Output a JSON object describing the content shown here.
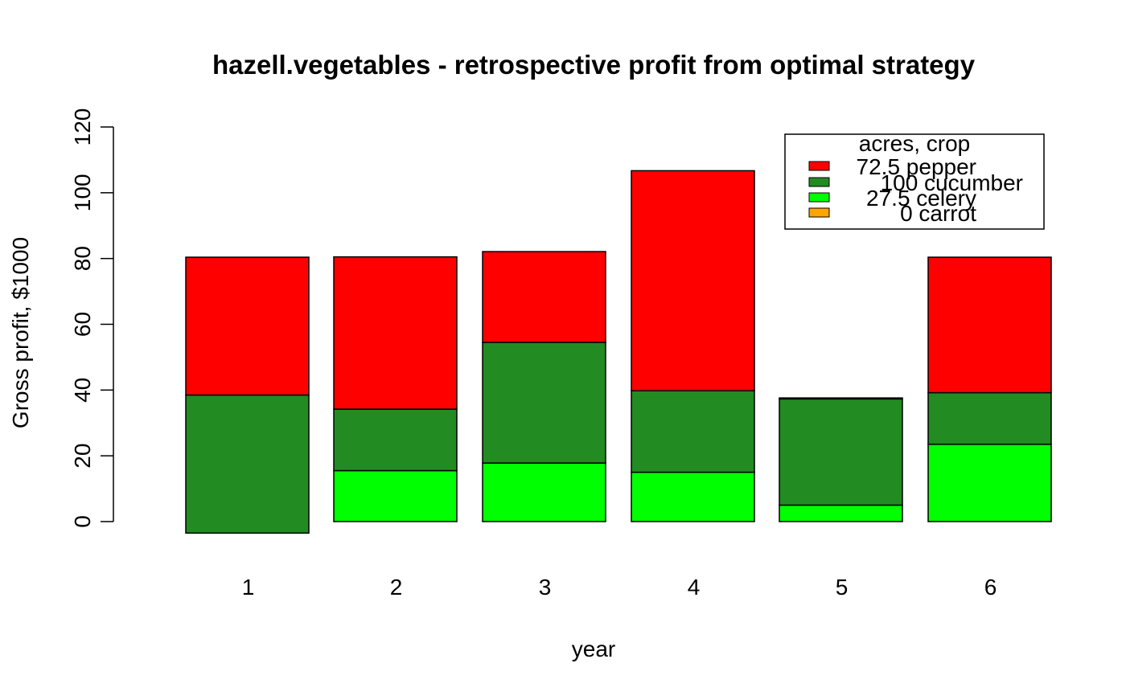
{
  "chart_data": {
    "type": "bar",
    "stacked": true,
    "title": "hazell.vegetables - retrospective profit from optimal strategy",
    "xlabel": "year",
    "ylabel": "Gross profit, $1000",
    "categories": [
      "1",
      "2",
      "3",
      "4",
      "5",
      "6"
    ],
    "ylim": [
      -3.5,
      120
    ],
    "yticks": [
      0,
      20,
      40,
      60,
      80,
      100,
      120
    ],
    "grid": false,
    "series": [
      {
        "name": "0 carrot",
        "color": "#FFA500",
        "values": [
          0,
          0,
          0,
          0,
          0,
          0
        ]
      },
      {
        "name": "27.5 celery",
        "color": "#00FF00",
        "values": [
          0,
          15.5,
          17.8,
          15,
          5,
          23.5
        ]
      },
      {
        "name": "100 cucumber",
        "color": "#228B22",
        "values": [
          38.5,
          18.7,
          36.7,
          24.8,
          32.3,
          15.7
        ]
      },
      {
        "name": "72.5 pepper",
        "color": "#FF0000",
        "values": [
          41.9,
          46.3,
          27.6,
          66.9,
          0.3,
          41.2
        ]
      }
    ],
    "bar_bottoms_note_free": true,
    "negative_adjust": {
      "category": "1",
      "series": "100 cucumber",
      "bottom": -3.5
    },
    "legend": {
      "title": "acres, crop",
      "placement": "top-right",
      "entries": [
        {
          "label": "72.5 pepper",
          "color": "#FF0000"
        },
        {
          "label": "100 cucumber",
          "color": "#228B22"
        },
        {
          "label": "27.5 celery",
          "color": "#00FF00"
        },
        {
          "label": "0 carrot",
          "color": "#FFA500"
        }
      ]
    }
  }
}
